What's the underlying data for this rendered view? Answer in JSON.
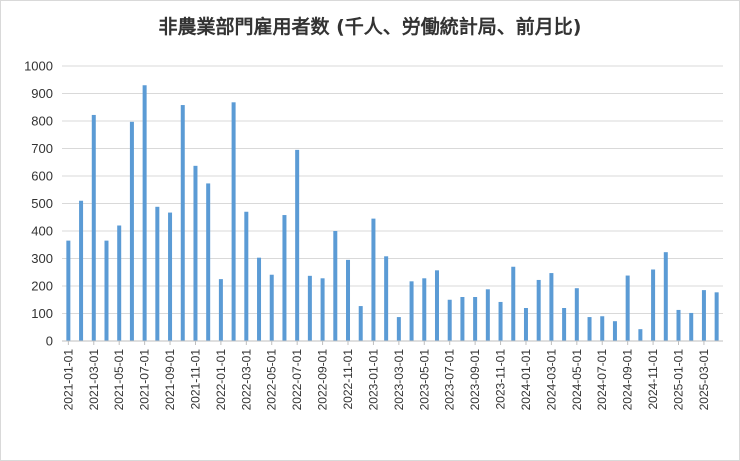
{
  "chart_data": {
    "type": "bar",
    "title": "非農業部門雇用者数 (千人、労働統計局、前月比)",
    "xlabel": "",
    "ylabel": "",
    "ylim": [
      0,
      1000
    ],
    "yticks": [
      0,
      100,
      200,
      300,
      400,
      500,
      600,
      700,
      800,
      900,
      1000
    ],
    "grid": true,
    "bar_color": "#5b9bd5",
    "categories": [
      "2021-01-01",
      "2021-02-01",
      "2021-03-01",
      "2021-04-01",
      "2021-05-01",
      "2021-06-01",
      "2021-07-01",
      "2021-08-01",
      "2021-09-01",
      "2021-10-01",
      "2021-11-01",
      "2021-12-01",
      "2022-01-01",
      "2022-02-01",
      "2022-03-01",
      "2022-04-01",
      "2022-05-01",
      "2022-06-01",
      "2022-07-01",
      "2022-08-01",
      "2022-09-01",
      "2022-10-01",
      "2022-11-01",
      "2022-12-01",
      "2023-01-01",
      "2023-02-01",
      "2023-03-01",
      "2023-04-01",
      "2023-05-01",
      "2023-06-01",
      "2023-07-01",
      "2023-08-01",
      "2023-09-01",
      "2023-10-01",
      "2023-11-01",
      "2023-12-01",
      "2024-01-01",
      "2024-02-01",
      "2024-03-01",
      "2024-04-01",
      "2024-05-01",
      "2024-06-01",
      "2024-07-01",
      "2024-08-01",
      "2024-09-01",
      "2024-10-01",
      "2024-11-01",
      "2024-12-01",
      "2025-01-01",
      "2025-02-01",
      "2025-03-01",
      "2025-04-01"
    ],
    "tick_labels": [
      "2021-01-01",
      "2021-03-01",
      "2021-05-01",
      "2021-07-01",
      "2021-09-01",
      "2021-11-01",
      "2022-01-01",
      "2022-03-01",
      "2022-05-01",
      "2022-07-01",
      "2022-09-01",
      "2022-11-01",
      "2023-01-01",
      "2023-03-01",
      "2023-05-01",
      "2023-07-01",
      "2023-09-01",
      "2023-11-01",
      "2024-01-01",
      "2024-03-01",
      "2024-05-01",
      "2024-07-01",
      "2024-09-01",
      "2024-11-01",
      "2025-01-01",
      "2025-03-01"
    ],
    "values": [
      365,
      510,
      822,
      365,
      420,
      797,
      930,
      488,
      467,
      858,
      637,
      573,
      225,
      868,
      470,
      303,
      241,
      458,
      695,
      237,
      228,
      400,
      295,
      127,
      445,
      308,
      87,
      217,
      228,
      257,
      150,
      160,
      160,
      188,
      142,
      270,
      120,
      222,
      247,
      120,
      192,
      87,
      90,
      72,
      238,
      43,
      260,
      323,
      113,
      102,
      185,
      177
    ]
  }
}
